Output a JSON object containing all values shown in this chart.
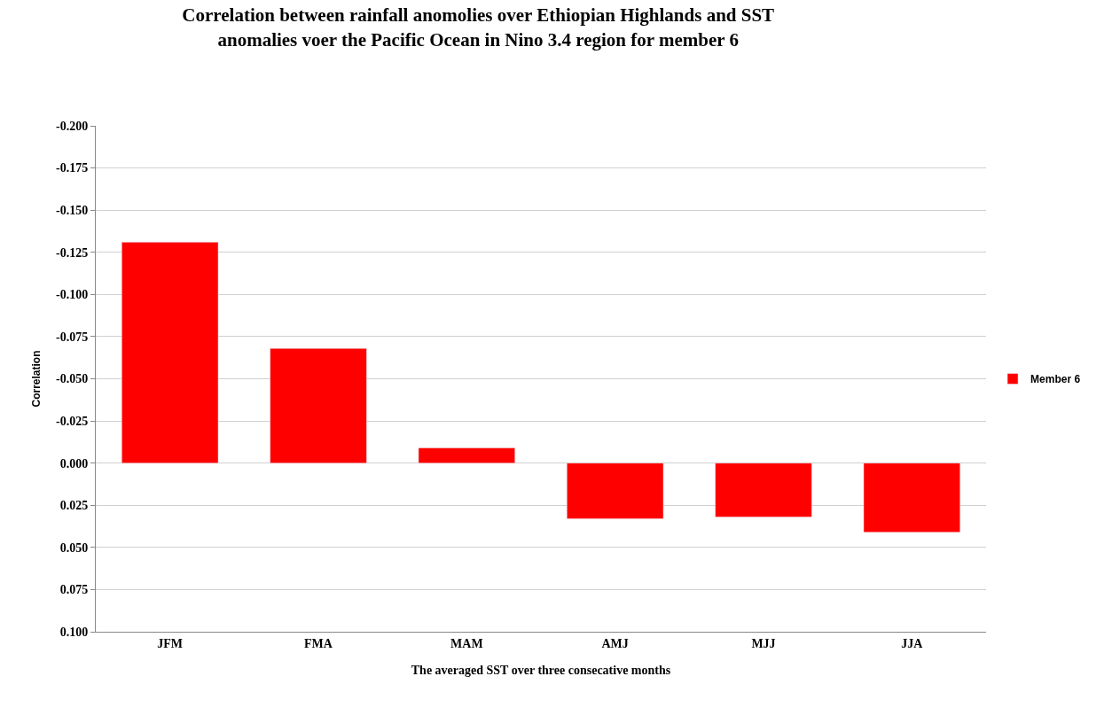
{
  "chart_data": {
    "type": "bar",
    "title": "Correlation between rainfall anomolies over Ethiopian Highlands and SST\nanomalies voer the Pacific Ocean in Nino 3.4 region for member 6",
    "xlabel": "The averaged SST over three consecative months",
    "ylabel": "Correlation",
    "categories": [
      "JFM",
      "FMA",
      "MAM",
      "AMJ",
      "MJJ",
      "JJA"
    ],
    "series": [
      {
        "name": "Member 6",
        "color": "#ff0000",
        "values": [
          -0.131,
          -0.068,
          -0.009,
          0.033,
          0.032,
          0.041
        ]
      }
    ],
    "ylim": [
      0.1,
      -0.2
    ],
    "yticks": [
      {
        "value": -0.2,
        "label": "-0.200"
      },
      {
        "value": -0.175,
        "label": "-0.175"
      },
      {
        "value": -0.15,
        "label": "-0.150"
      },
      {
        "value": -0.125,
        "label": "-0.125"
      },
      {
        "value": -0.1,
        "label": "-0.100"
      },
      {
        "value": -0.075,
        "label": "-0.075"
      },
      {
        "value": -0.05,
        "label": "-0.050"
      },
      {
        "value": -0.025,
        "label": "-0.025"
      },
      {
        "value": 0,
        "label": "0.000"
      },
      {
        "value": 0.025,
        "label": "0.025"
      },
      {
        "value": 0.05,
        "label": "0.050"
      },
      {
        "value": 0.075,
        "label": "0.075"
      },
      {
        "value": 0.1,
        "label": "0.100"
      }
    ],
    "grid": "y",
    "legend": "right"
  }
}
